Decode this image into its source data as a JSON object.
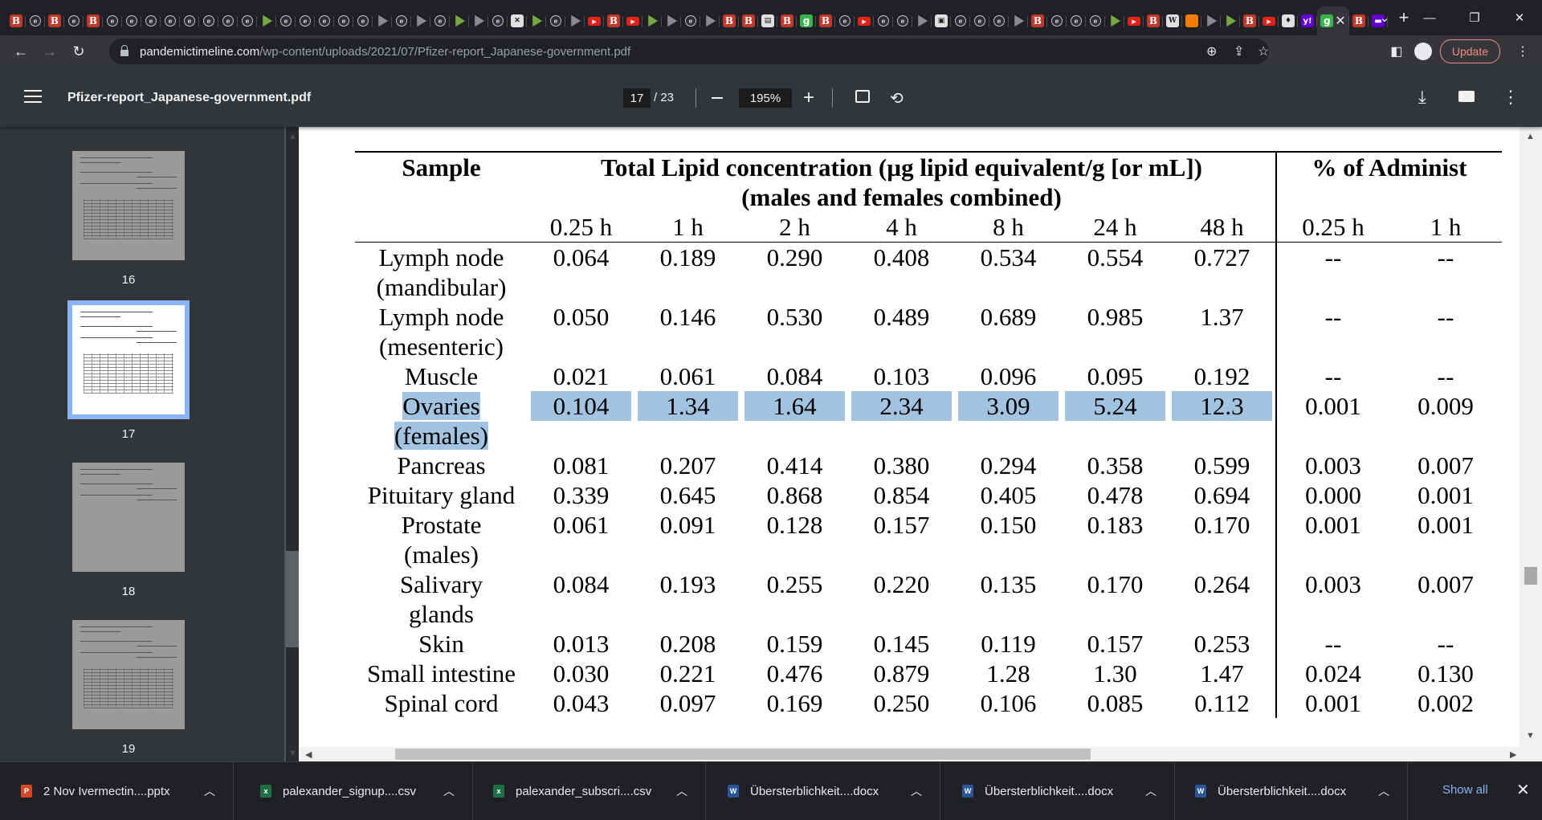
{
  "browser": {
    "tabs": [
      {
        "fav": "blogger",
        "g": "B"
      },
      {
        "fav": "arc",
        "g": "e"
      },
      {
        "fav": "blogger",
        "g": "B"
      },
      {
        "fav": "arc",
        "g": "e"
      },
      {
        "fav": "blogger",
        "g": "B"
      },
      {
        "fav": "arc",
        "g": "e"
      },
      {
        "fav": "arc",
        "g": "e"
      },
      {
        "fav": "arc",
        "g": "e"
      },
      {
        "fav": "arc",
        "g": "e"
      },
      {
        "fav": "arc",
        "g": "e"
      },
      {
        "fav": "arc",
        "g": "e"
      },
      {
        "fav": "arc",
        "g": "e"
      },
      {
        "fav": "arc",
        "g": "e"
      },
      {
        "fav": "rumble",
        "g": ""
      },
      {
        "fav": "arc",
        "g": "e"
      },
      {
        "fav": "arc",
        "g": "e"
      },
      {
        "fav": "arc",
        "g": "e"
      },
      {
        "fav": "arc",
        "g": "e"
      },
      {
        "fav": "arc",
        "g": "e"
      },
      {
        "fav": "play",
        "g": ""
      },
      {
        "fav": "arc",
        "g": "e"
      },
      {
        "fav": "play",
        "g": ""
      },
      {
        "fav": "arc",
        "g": "e"
      },
      {
        "fav": "rumble",
        "g": ""
      },
      {
        "fav": "play",
        "g": ""
      },
      {
        "fav": "arc",
        "g": "e"
      },
      {
        "fav": "doc",
        "g": "✕"
      },
      {
        "fav": "rumble",
        "g": ""
      },
      {
        "fav": "arc",
        "g": "e"
      },
      {
        "fav": "play",
        "g": ""
      },
      {
        "fav": "yt",
        "g": "▶"
      },
      {
        "fav": "blogger",
        "g": "B"
      },
      {
        "fav": "yt",
        "g": "▶"
      },
      {
        "fav": "rumble",
        "g": ""
      },
      {
        "fav": "play",
        "g": ""
      },
      {
        "fav": "arc",
        "g": "e"
      },
      {
        "fav": "play",
        "g": ""
      },
      {
        "fav": "blogger",
        "g": "B"
      },
      {
        "fav": "blogger",
        "g": "B"
      },
      {
        "fav": "doc",
        "g": "▤"
      },
      {
        "fav": "blogger",
        "g": "B"
      },
      {
        "fav": "g",
        "g": "g"
      },
      {
        "fav": "blogger",
        "g": "B"
      },
      {
        "fav": "arc",
        "g": "e"
      },
      {
        "fav": "yt",
        "g": "▶"
      },
      {
        "fav": "arc",
        "g": "e"
      },
      {
        "fav": "arc",
        "g": "e"
      },
      {
        "fav": "play",
        "g": ""
      },
      {
        "fav": "doc",
        "g": "▣"
      },
      {
        "fav": "arc",
        "g": "e"
      },
      {
        "fav": "arc",
        "g": "e"
      },
      {
        "fav": "arc",
        "g": "e"
      },
      {
        "fav": "play",
        "g": ""
      },
      {
        "fav": "blogger",
        "g": "B"
      },
      {
        "fav": "arc",
        "g": "e"
      },
      {
        "fav": "arc",
        "g": "e"
      },
      {
        "fav": "arc",
        "g": "e"
      },
      {
        "fav": "rumble",
        "g": ""
      },
      {
        "fav": "yt",
        "g": "▶"
      },
      {
        "fav": "blogger",
        "g": "B"
      },
      {
        "fav": "doc",
        "g": "W"
      },
      {
        "fav": "bm",
        "g": ""
      },
      {
        "fav": "play",
        "g": ""
      },
      {
        "fav": "rumble",
        "g": ""
      },
      {
        "fav": "blogger",
        "g": "B"
      },
      {
        "fav": "yt",
        "g": "▶"
      },
      {
        "fav": "doc",
        "g": "♦"
      },
      {
        "fav": "y",
        "g": "y!"
      },
      {
        "fav": "blogger",
        "g": "B"
      },
      {
        "fav": "y",
        "g": "▬"
      }
    ],
    "active_tab": {
      "fav": "g",
      "g": "g"
    },
    "active_tab2": {
      "fav": "y",
      "g": "y!"
    },
    "active_tab3": {
      "fav": "yt",
      "g": "▶"
    },
    "url_domain": "pandemictimeline.com",
    "url_path": "/wp-content/uploads/2021/07/Pfizer-report_Japanese-government.pdf",
    "update_label": "Update"
  },
  "pdf": {
    "title": "Pfizer-report_Japanese-government.pdf",
    "current_page": "17",
    "total_pages": "/ 23",
    "zoom": "195%"
  },
  "thumbnails": [
    {
      "label": "16",
      "selected": false
    },
    {
      "label": "17",
      "selected": true
    },
    {
      "label": "18",
      "selected": false
    },
    {
      "label": "19",
      "selected": false
    }
  ],
  "table": {
    "sample_header": "Sample",
    "conc_header_line1": "Total Lipid concentration (µg lipid equivalent/g [or mL])",
    "conc_header_line2": "(males and females combined)",
    "pct_header": "% of Administ",
    "time_points": [
      "0.25 h",
      "1 h",
      "2 h",
      "4 h",
      "8 h",
      "24 h",
      "48 h"
    ],
    "pct_time_points": [
      "0.25 h",
      "1 h"
    ],
    "rows": [
      {
        "sample": [
          "Lymph node",
          "(mandibular)"
        ],
        "values": [
          "0.064",
          "0.189",
          "0.290",
          "0.408",
          "0.534",
          "0.554",
          "0.727"
        ],
        "pct": [
          "--",
          "--"
        ]
      },
      {
        "sample": [
          "Lymph node",
          "(mesenteric)"
        ],
        "values": [
          "0.050",
          "0.146",
          "0.530",
          "0.489",
          "0.689",
          "0.985",
          "1.37"
        ],
        "pct": [
          "--",
          "--"
        ]
      },
      {
        "sample": [
          "Muscle"
        ],
        "values": [
          "0.021",
          "0.061",
          "0.084",
          "0.103",
          "0.096",
          "0.095",
          "0.192"
        ],
        "pct": [
          "--",
          "--"
        ]
      },
      {
        "sample": [
          "Ovaries",
          "(females)"
        ],
        "values": [
          "0.104",
          "1.34",
          "1.64",
          "2.34",
          "3.09",
          "5.24",
          "12.3"
        ],
        "pct": [
          "0.001",
          "0.009"
        ],
        "highlight": true
      },
      {
        "sample": [
          "Pancreas"
        ],
        "values": [
          "0.081",
          "0.207",
          "0.414",
          "0.380",
          "0.294",
          "0.358",
          "0.599"
        ],
        "pct": [
          "0.003",
          "0.007"
        ]
      },
      {
        "sample": [
          "Pituitary gland"
        ],
        "values": [
          "0.339",
          "0.645",
          "0.868",
          "0.854",
          "0.405",
          "0.478",
          "0.694"
        ],
        "pct": [
          "0.000",
          "0.001"
        ]
      },
      {
        "sample": [
          "Prostate",
          "(males)"
        ],
        "values": [
          "0.061",
          "0.091",
          "0.128",
          "0.157",
          "0.150",
          "0.183",
          "0.170"
        ],
        "pct": [
          "0.001",
          "0.001"
        ]
      },
      {
        "sample": [
          "Salivary",
          "glands"
        ],
        "values": [
          "0.084",
          "0.193",
          "0.255",
          "0.220",
          "0.135",
          "0.170",
          "0.264"
        ],
        "pct": [
          "0.003",
          "0.007"
        ]
      },
      {
        "sample": [
          "Skin"
        ],
        "values": [
          "0.013",
          "0.208",
          "0.159",
          "0.145",
          "0.119",
          "0.157",
          "0.253"
        ],
        "pct": [
          "--",
          "--"
        ]
      },
      {
        "sample": [
          "Small intestine"
        ],
        "values": [
          "0.030",
          "0.221",
          "0.476",
          "0.879",
          "1.28",
          "1.30",
          "1.47"
        ],
        "pct": [
          "0.024",
          "0.130"
        ]
      },
      {
        "sample": [
          "Spinal cord"
        ],
        "values": [
          "0.043",
          "0.097",
          "0.169",
          "0.250",
          "0.106",
          "0.085",
          "0.112"
        ],
        "pct": [
          "0.001",
          "0.002"
        ]
      }
    ]
  },
  "downloads": [
    {
      "name": "2 Nov Ivermectin....pptx",
      "icon": "P",
      "color": "#d24726"
    },
    {
      "name": "palexander_signup....csv",
      "icon": "x",
      "color": "#1e7145"
    },
    {
      "name": "palexander_subscri....csv",
      "icon": "x",
      "color": "#1e7145"
    },
    {
      "name": "Übersterblichkeit....docx",
      "icon": "W",
      "color": "#2b579a"
    },
    {
      "name": "Übersterblichkeit....docx",
      "icon": "W",
      "color": "#2b579a"
    },
    {
      "name": "Übersterblichkeit....docx",
      "icon": "W",
      "color": "#2b579a"
    }
  ],
  "show_all_label": "Show all"
}
